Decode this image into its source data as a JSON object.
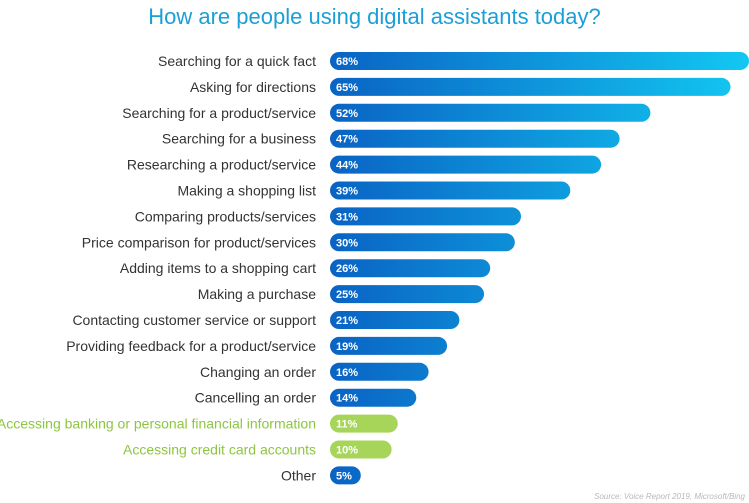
{
  "chart_data": {
    "type": "bar",
    "orientation": "horizontal",
    "title": "How are people using digital assistants today?",
    "categories": [
      "Searching for a quick fact",
      "Asking for directions",
      "Searching for a product/service",
      "Searching for a business",
      "Researching a product/service",
      "Making a shopping list",
      "Comparing products/services",
      "Price comparison for product/services",
      "Adding items to a shopping cart",
      "Making a purchase",
      "Contacting customer service or support",
      "Providing feedback for a product/service",
      "Changing an order",
      "Cancelling an order",
      "Accessing banking or personal financial information",
      "Accessing credit card accounts",
      "Other"
    ],
    "values": [
      68,
      65,
      52,
      47,
      44,
      39,
      31,
      30,
      26,
      25,
      21,
      19,
      16,
      14,
      11,
      10,
      5
    ],
    "value_labels": [
      "68%",
      "65%",
      "52%",
      "47%",
      "44%",
      "39%",
      "31%",
      "30%",
      "26%",
      "25%",
      "21%",
      "19%",
      "16%",
      "14%",
      "11%",
      "10%",
      "5%"
    ],
    "highlight": [
      false,
      false,
      false,
      false,
      false,
      false,
      false,
      false,
      false,
      false,
      false,
      false,
      false,
      false,
      true,
      true,
      false
    ],
    "xlim": [
      0,
      68
    ],
    "grid": false,
    "legend": "none",
    "source": "Source: Voice Report 2019, Microsoft/Bing",
    "colors": {
      "title": "#1b9fd6",
      "label": "#333333",
      "highlight_label": "#8cc63f",
      "bar_start": "#0a63c4",
      "bar_end": "#12c8f2",
      "highlight_bar": "#a6d55a"
    }
  }
}
